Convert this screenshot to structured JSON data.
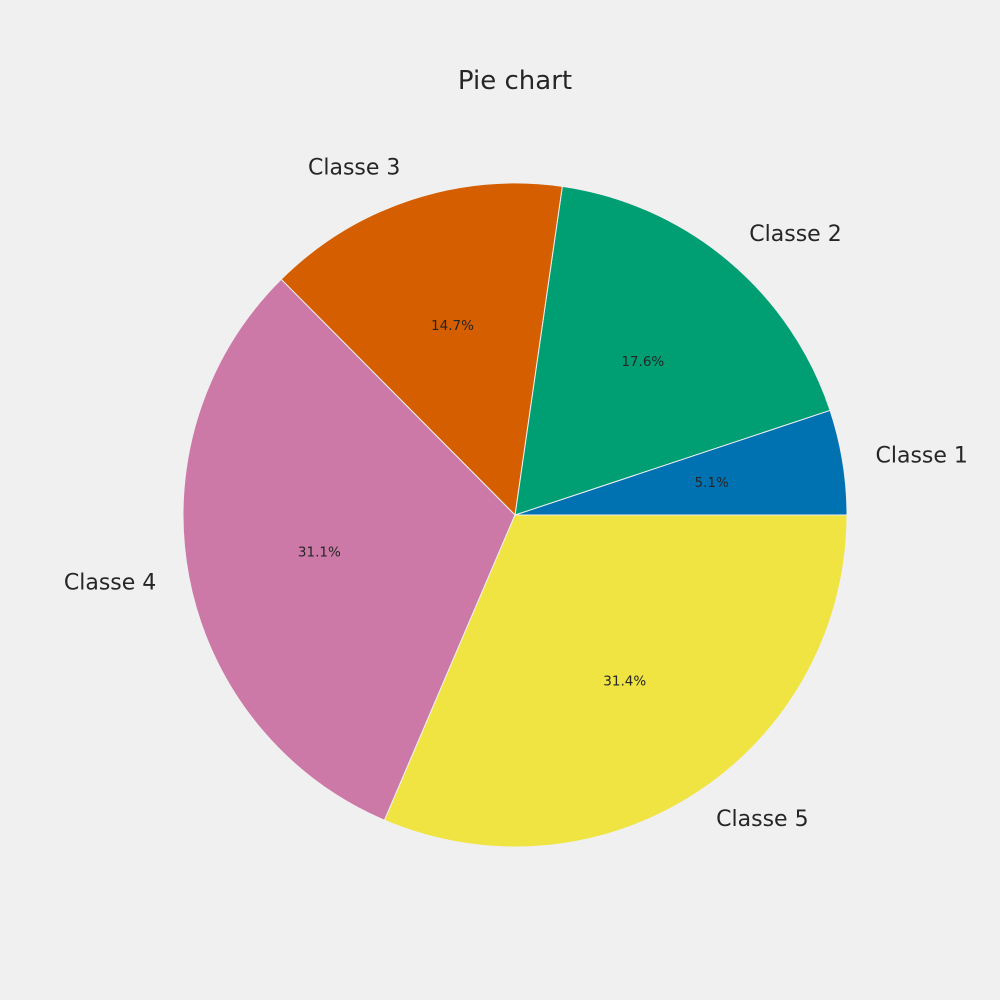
{
  "chart_data": {
    "type": "pie",
    "title": "Pie chart",
    "categories": [
      "Classe 1",
      "Classe 2",
      "Classe 3",
      "Classe 4",
      "Classe 5"
    ],
    "values": [
      5.1,
      17.6,
      14.7,
      31.1,
      31.4
    ],
    "percent_labels": [
      "5.1%",
      "17.6%",
      "14.7%",
      "31.1%",
      "31.4%"
    ],
    "colors": [
      "#0072b2",
      "#009e73",
      "#d55e00",
      "#cc79a7",
      "#f0e442"
    ],
    "start_angle_deg": 0,
    "direction": "counterclockwise",
    "legend": "none"
  }
}
